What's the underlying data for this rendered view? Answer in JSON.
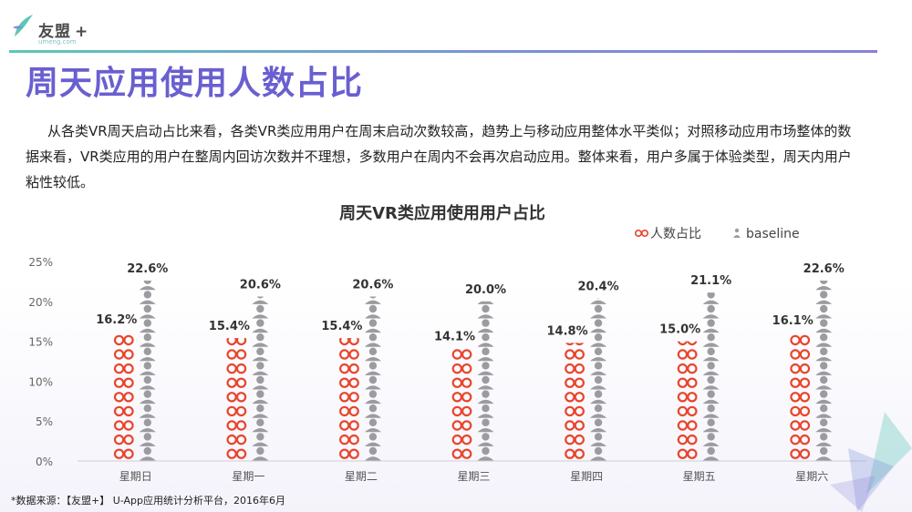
{
  "brand": {
    "name": "友盟",
    "plus": "+",
    "sub": "umeng.com"
  },
  "title": "周天应用使用人数占比",
  "description": "从各类VR周天启动占比来看，各类VR类应用用户在周末启动次数较高，趋势上与移动应用整体水平类似；对照移动应用市场整体的数据来看，VR类应用的用户在整周内回访次数并不理想，多数用户在周内不会再次启动应用。整体来看，用户多属于体验类型，周天内用户粘性较低。",
  "source": "*数据来源：【友盟+】 U-App应用统计分析平台，2016年6月",
  "colors": {
    "accent": "#6a5fd0",
    "series_vr": "#e8452c",
    "series_base": "#9c9ca0"
  },
  "chart_data": {
    "type": "bar",
    "title": "周天VR类应用使用用户占比",
    "categories": [
      "星期日",
      "星期一",
      "星期二",
      "星期三",
      "星期四",
      "星期五",
      "星期六"
    ],
    "series": [
      {
        "name": "人数占比",
        "values": [
          16.2,
          15.4,
          15.4,
          14.1,
          14.8,
          15.0,
          16.1
        ],
        "labels": [
          "16.2%",
          "15.4%",
          "15.4%",
          "14.1%",
          "14.8%",
          "15.0%",
          "16.1%"
        ]
      },
      {
        "name": "baseline",
        "values": [
          22.6,
          20.6,
          20.6,
          20.0,
          20.4,
          21.1,
          22.6
        ],
        "labels": [
          "22.6%",
          "20.6%",
          "20.6%",
          "20.0%",
          "20.4%",
          "21.1%",
          "22.6%"
        ]
      }
    ],
    "yticks": [
      "0%",
      "5%",
      "10%",
      "15%",
      "20%",
      "25%"
    ],
    "ylim": [
      0,
      25
    ],
    "legend": "top-right",
    "grid": false
  }
}
